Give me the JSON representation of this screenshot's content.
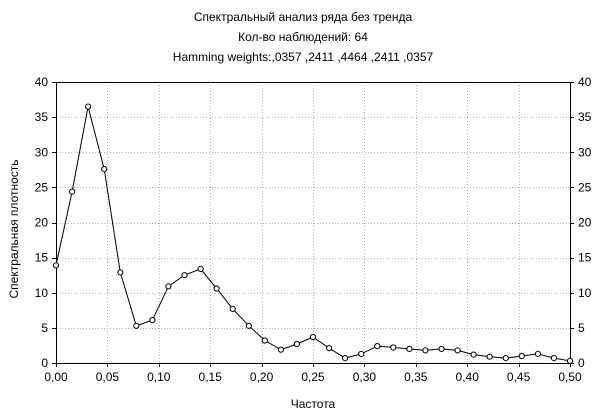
{
  "chart_data": {
    "type": "line",
    "title": "Спектральный анализ ряда без тренда",
    "subtitle_lines": [
      "Кол-во наблюдений: 64",
      "Hamming weights:,0357 ,2411 ,4464 ,2411 ,0357"
    ],
    "xlabel": "Частота",
    "ylabel": "Спектральная плотность",
    "xlim": [
      0,
      0.5
    ],
    "ylim": [
      0,
      40
    ],
    "x_ticks": [
      "0,00",
      "0,05",
      "0,10",
      "0,15",
      "0,20",
      "0,25",
      "0,30",
      "0,35",
      "0,40",
      "0,45",
      "0,50"
    ],
    "x_tick_values": [
      0,
      0.05,
      0.1,
      0.15,
      0.2,
      0.25,
      0.3,
      0.35,
      0.4,
      0.45,
      0.5
    ],
    "y_ticks": [
      "0",
      "5",
      "10",
      "15",
      "20",
      "25",
      "30",
      "35",
      "40"
    ],
    "y_tick_values": [
      0,
      5,
      10,
      15,
      20,
      25,
      30,
      35,
      40
    ],
    "grid": true,
    "right_axis_mirrored": true,
    "marker": "open-circle",
    "line_color": "#000000",
    "grid_color": "#b4b4b4",
    "series": [
      {
        "x": [
          0,
          0.015625,
          0.03125,
          0.046875,
          0.0625,
          0.078125,
          0.09375,
          0.109375,
          0.125,
          0.140625,
          0.15625,
          0.171875,
          0.1875,
          0.203125,
          0.21875,
          0.234375,
          0.25,
          0.265625,
          0.28125,
          0.296875,
          0.3125,
          0.328125,
          0.34375,
          0.359375,
          0.375,
          0.390625,
          0.40625,
          0.421875,
          0.4375,
          0.453125,
          0.46875,
          0.484375,
          0.5
        ],
        "values": [
          13.9,
          24.4,
          36.5,
          27.6,
          12.9,
          5.3,
          6.1,
          10.9,
          12.5,
          13.4,
          10.6,
          7.7,
          5.3,
          3.2,
          1.9,
          2.7,
          3.7,
          2.1,
          0.7,
          1.3,
          2.4,
          2.2,
          2.0,
          1.8,
          2.0,
          1.8,
          1.2,
          0.9,
          0.7,
          1.0,
          1.3,
          0.7,
          0.3
        ]
      }
    ]
  }
}
